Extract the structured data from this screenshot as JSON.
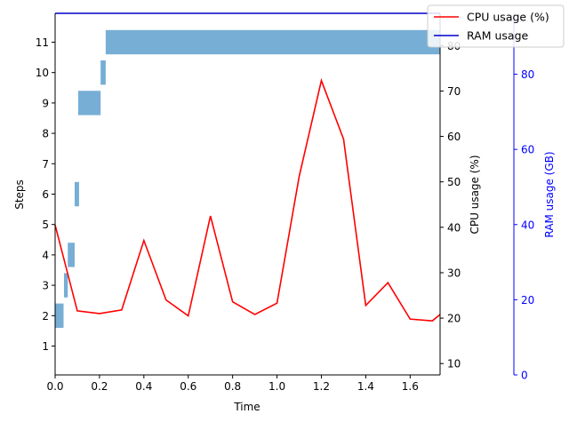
{
  "chart_data": {
    "type": "bar",
    "title": "",
    "xlabel": "Time",
    "ylabel": "Steps",
    "y2label": "CPU usage (%)",
    "y3label": "RAM usage (GB)",
    "xlim": [
      0,
      1.735
    ],
    "ylim": [
      0.05,
      11.95
    ],
    "y2lim": [
      7.5,
      87.1
    ],
    "y3lim": [
      0,
      96.2
    ],
    "x_ticks": [
      0.0,
      0.2,
      0.4,
      0.6,
      0.8,
      1.0,
      1.2,
      1.4,
      1.6
    ],
    "x_tick_labels": [
      "0.0",
      "0.2",
      "0.4",
      "0.6",
      "0.8",
      "1.0",
      "1.2",
      "1.4",
      "1.6"
    ],
    "y_ticks": [
      1,
      2,
      3,
      4,
      5,
      6,
      7,
      8,
      9,
      10,
      11
    ],
    "y_tick_labels": [
      "1",
      "2",
      "3",
      "4",
      "5",
      "6",
      "7",
      "8",
      "9",
      "10",
      "11"
    ],
    "y2_ticks": [
      10,
      20,
      30,
      40,
      50,
      60,
      70,
      80
    ],
    "y2_tick_labels": [
      "10",
      "20",
      "30",
      "40",
      "50",
      "60",
      "70",
      "80"
    ],
    "y3_ticks": [
      0,
      20,
      40,
      60,
      80
    ],
    "y3_tick_labels": [
      "0",
      "20",
      "40",
      "60",
      "80"
    ],
    "steps": [
      {
        "step": 2,
        "start": 0.0,
        "end": 0.038
      },
      {
        "step": 3,
        "start": 0.04,
        "end": 0.057
      },
      {
        "step": 4,
        "start": 0.057,
        "end": 0.088
      },
      {
        "step": 6,
        "start": 0.088,
        "end": 0.108
      },
      {
        "step": 9,
        "start": 0.104,
        "end": 0.205
      },
      {
        "step": 10,
        "start": 0.205,
        "end": 0.228
      },
      {
        "step": 11,
        "start": 0.228,
        "end": 1.735
      }
    ],
    "series": [
      {
        "name": "CPU usage (%)",
        "axis": "y2",
        "x": [
          0.0,
          0.1,
          0.2,
          0.3,
          0.4,
          0.5,
          0.6,
          0.7,
          0.8,
          0.9,
          1.0,
          1.1,
          1.2,
          1.3,
          1.4,
          1.5,
          1.6,
          1.7,
          1.735
        ],
        "values": [
          40.5,
          21.6,
          21.0,
          21.8,
          37.1,
          24.0,
          20.5,
          42.5,
          23.6,
          20.8,
          23.3,
          51.2,
          72.3,
          59.4,
          22.8,
          27.8,
          19.8,
          19.4,
          20.8
        ]
      },
      {
        "name": "RAM usage",
        "axis": "y3",
        "x": [
          0.0,
          1.735
        ],
        "values": [
          96.2,
          96.2
        ]
      }
    ],
    "legend_position": "top-right",
    "colors": {
      "bars": "#77aed5",
      "cpu": "#ff0000",
      "ram": "#0000cc",
      "ram_axis": "#0000ff",
      "axis": "#000000"
    }
  }
}
